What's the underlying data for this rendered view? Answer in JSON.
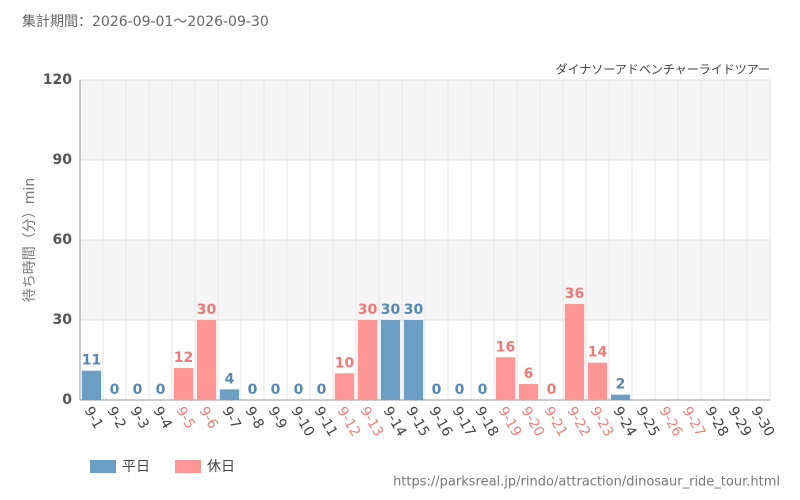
{
  "chart_data": {
    "type": "bar",
    "title": "集計期間：2026-09-01～2026-09-30",
    "subtitle": "ダイナソーアドベンチャーライドツアー",
    "y_label": "待ち時間（分）min",
    "source": "https://parksreal.jp/rindo/attraction/dinosaur_ride_tour.html",
    "categories": [
      "9-1",
      "9-2",
      "9-3",
      "9-4",
      "9-5",
      "9-6",
      "9-7",
      "9-8",
      "9-9",
      "9-10",
      "9-11",
      "9-12",
      "9-13",
      "9-14",
      "9-15",
      "9-16",
      "9-17",
      "9-18",
      "9-19",
      "9-20",
      "9-21",
      "9-22",
      "9-23",
      "9-24",
      "9-25",
      "9-26",
      "9-27",
      "9-28",
      "9-29",
      "9-30"
    ],
    "category_label_colors": [
      "#444",
      "#444",
      "#444",
      "#444",
      "#f08080",
      "#f08080",
      "#444",
      "#444",
      "#444",
      "#444",
      "#444",
      "#f08080",
      "#f08080",
      "#444",
      "#444",
      "#444",
      "#444",
      "#444",
      "#f08080",
      "#f08080",
      "#f08080",
      "#f08080",
      "#f08080",
      "#444",
      "#444",
      "#f08080",
      "#f08080",
      "#444",
      "#444",
      "#444"
    ],
    "series": [
      {
        "name": "平日",
        "color": "#6a9ec5",
        "label_color": "#5588b4",
        "values": [
          11,
          0,
          0,
          0,
          null,
          null,
          4,
          0,
          0,
          0,
          0,
          null,
          null,
          30,
          30,
          0,
          0,
          0,
          null,
          null,
          null,
          null,
          null,
          2,
          null,
          null,
          null,
          null,
          null,
          null
        ]
      },
      {
        "name": "休日",
        "color": "#ff9595",
        "label_color": "#f07878",
        "values": [
          null,
          null,
          null,
          null,
          12,
          30,
          null,
          null,
          null,
          null,
          null,
          10,
          30,
          null,
          null,
          null,
          null,
          null,
          16,
          6,
          0,
          36,
          14,
          null,
          null,
          null,
          null,
          null,
          null,
          null
        ]
      }
    ],
    "ylim": [
      0,
      120
    ],
    "yticks": [
      0,
      30,
      60,
      90,
      120
    ],
    "grid": true,
    "legend": "bottom-left"
  }
}
